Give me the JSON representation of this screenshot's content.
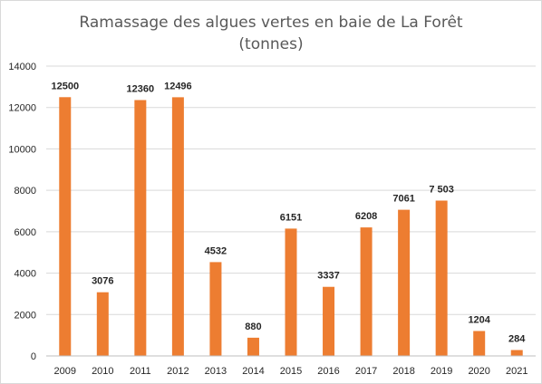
{
  "chart_data": {
    "type": "bar",
    "title_lines": [
      "Ramassage des algues vertes  en baie de La Forêt",
      "(tonnes)"
    ],
    "categories": [
      "2009",
      "2010",
      "2011",
      "2012",
      "2013",
      "2014",
      "2015",
      "2016",
      "2017",
      "2018",
      "2019",
      "2020",
      "2021"
    ],
    "values": [
      12500,
      3076,
      12360,
      12496,
      4532,
      880,
      6151,
      3337,
      6208,
      7061,
      7503,
      1204,
      284
    ],
    "data_labels": [
      "12500",
      "3076",
      "12360",
      "12496",
      "4532",
      "880",
      "6151",
      "3337",
      "6208",
      "7061",
      "7 503",
      "1204",
      "284"
    ],
    "y_ticks": [
      "0",
      "2000",
      "4000",
      "6000",
      "8000",
      "10000",
      "12000",
      "14000"
    ],
    "ylim": [
      0,
      14000
    ],
    "grid": true,
    "legend": "none",
    "bar_color": "#ED7D31"
  }
}
